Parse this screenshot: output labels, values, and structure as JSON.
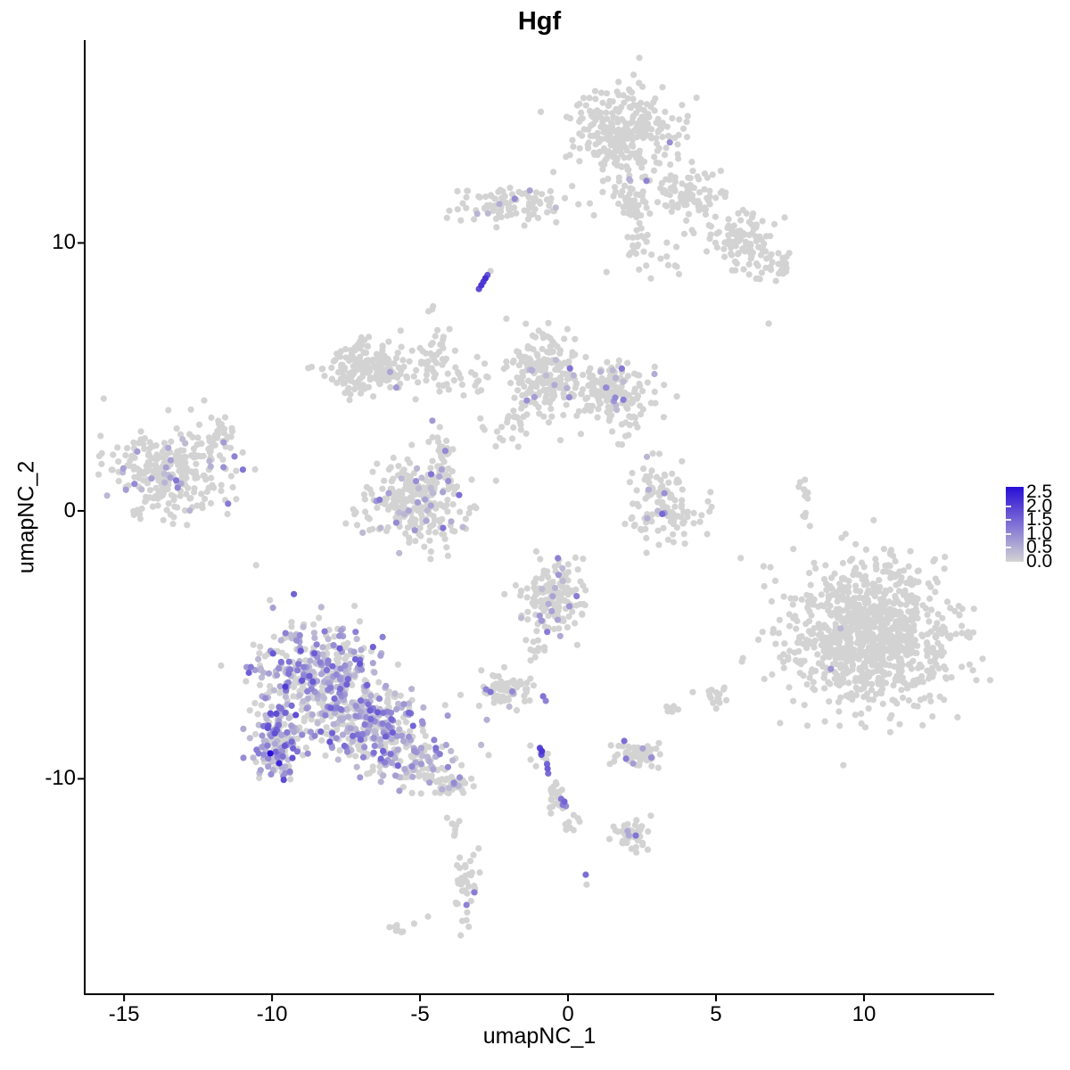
{
  "title": "Hgf",
  "axes": {
    "x": {
      "label": "umapNC_1",
      "ticks": [
        {
          "v": -15,
          "label": "-15"
        },
        {
          "v": -10,
          "label": "-10"
        },
        {
          "v": -5,
          "label": "-5"
        },
        {
          "v": 0,
          "label": "0"
        },
        {
          "v": 5,
          "label": "5"
        },
        {
          "v": 10,
          "label": "10"
        }
      ]
    },
    "y": {
      "label": "umapNC_2",
      "ticks": [
        {
          "v": 10,
          "label": "10"
        },
        {
          "v": 0,
          "label": "0"
        },
        {
          "v": -10,
          "label": "-10"
        }
      ]
    }
  },
  "colors": {
    "background": "#FFFFFF",
    "axis": "#000000",
    "point_low": "#D3D3D3",
    "point_high": "#280ED6"
  },
  "chart_data": {
    "type": "scatter",
    "title": "Hgf",
    "xlabel": "umapNC_1",
    "ylabel": "umapNC_2",
    "xlim": [
      -16.33,
      14.4
    ],
    "ylim": [
      -18.04,
      17.57
    ],
    "x_ticks": [
      -15,
      -10,
      -5,
      0,
      5,
      10
    ],
    "y_ticks": [
      10,
      0,
      -10
    ],
    "grid": false,
    "legend_position": "right",
    "point_radius_px": 3.6,
    "color_low": "#D3D3D3",
    "color_high": "#280ED6",
    "colorbar": {
      "min": 0.0,
      "max": 2.5,
      "labels": [
        "2.5",
        "2.0",
        "1.5",
        "1.0",
        "0.5",
        "0.0"
      ]
    },
    "clusters": [
      {
        "id": "top-main",
        "cx": 1.9,
        "cy": 14.14,
        "sx": 0.95,
        "sy": 0.85,
        "n": 300,
        "frac": 0.004,
        "vmax": 1.0
      },
      {
        "id": "top-main-south",
        "cx": 2.14,
        "cy": 11.55,
        "sx": 0.27,
        "sy": 0.5,
        "n": 50,
        "frac": 0.03,
        "vmax": 1.1
      },
      {
        "id": "top-right-a",
        "cx": 4.16,
        "cy": 11.81,
        "sx": 0.55,
        "sy": 0.5,
        "n": 90,
        "frac": 0.0,
        "vmax": 0
      },
      {
        "id": "top-right-b",
        "cx": 5.81,
        "cy": 10.02,
        "sx": 0.6,
        "sy": 0.55,
        "n": 95,
        "frac": 0.0,
        "vmax": 0
      },
      {
        "id": "top-right-c",
        "cx": 7.08,
        "cy": 9.15,
        "sx": 0.33,
        "sy": 0.28,
        "n": 28,
        "frac": 0.0,
        "vmax": 0
      },
      {
        "id": "top-sparse",
        "cx": 2.65,
        "cy": 9.92,
        "sx": 0.55,
        "sy": 0.6,
        "n": 30,
        "frac": 0.0,
        "vmax": 0
      },
      {
        "id": "top-mid-band",
        "cx": -1.87,
        "cy": 11.41,
        "sx": 1.1,
        "sy": 0.37,
        "n": 100,
        "frac": 0.012,
        "vmax": 1.0
      },
      {
        "id": "left",
        "cx": -13.29,
        "cy": 1.43,
        "sx": 0.95,
        "sy": 0.85,
        "n": 290,
        "frac": 0.085,
        "vmax": 1.2
      },
      {
        "id": "left-ne-streak",
        "cx": -11.66,
        "cy": 2.99,
        "sx": 0.35,
        "sy": 0.4,
        "n": 26,
        "frac": 0.0,
        "vmax": 0
      },
      {
        "id": "arc",
        "cx": -6.69,
        "cy": 5.32,
        "sx": 0.78,
        "sy": 0.5,
        "n": 190,
        "frac": 0.012,
        "vmax": 1.0
      },
      {
        "id": "arc-east-sparse",
        "cx": -3.98,
        "cy": 5.09,
        "sx": 0.7,
        "sy": 0.6,
        "n": 40,
        "frac": 0.0,
        "vmax": 0
      },
      {
        "id": "mid-v-trail",
        "cx": -4.43,
        "cy": 6.26,
        "sx": 0.2,
        "sy": 0.7,
        "n": 22,
        "frac": 0.0,
        "vmax": 0
      },
      {
        "id": "u-cluster",
        "cx": -5.12,
        "cy": 0.37,
        "sx": 0.86,
        "sy": 0.77,
        "n": 270,
        "frac": 0.105,
        "vmax": 1.4
      },
      {
        "id": "u-north-streak",
        "cx": -4.28,
        "cy": 2.16,
        "sx": 0.2,
        "sy": 0.6,
        "n": 26,
        "frac": 0.12,
        "vmax": 1.2
      },
      {
        "id": "between-sparse",
        "cx": -2.17,
        "cy": 3.09,
        "sx": 0.4,
        "sy": 0.35,
        "n": 18,
        "frac": 0.0,
        "vmax": 0
      },
      {
        "id": "center-left",
        "cx": -0.87,
        "cy": 5.09,
        "sx": 0.63,
        "sy": 0.83,
        "n": 200,
        "frac": 0.05,
        "vmax": 1.3
      },
      {
        "id": "center-right",
        "cx": 1.51,
        "cy": 4.36,
        "sx": 0.63,
        "sy": 0.62,
        "n": 170,
        "frac": 0.1,
        "vmax": 1.4
      },
      {
        "id": "crescent",
        "cx": 3.25,
        "cy": 0.23,
        "sx": 0.68,
        "sy": 0.77,
        "n": 120,
        "frac": 0.09,
        "vmax": 1.4
      },
      {
        "id": "right-streak",
        "cx": 7.95,
        "cy": 0.37,
        "sx": 0.1,
        "sy": 0.55,
        "n": 12,
        "frac": 0.0,
        "vmax": 0
      },
      {
        "id": "big-right",
        "cx": 10.33,
        "cy": -4.63,
        "sx": 1.4,
        "sy": 1.35,
        "n": 950,
        "frac": 0.0015,
        "vmax": 0.9
      },
      {
        "id": "bl-core-north",
        "cx": -8.41,
        "cy": -6.12,
        "sx": 1.12,
        "sy": 0.9,
        "n": 400,
        "frac": 0.55,
        "vmax": 1.6
      },
      {
        "id": "bl-core-south",
        "cx": -6.69,
        "cy": -8.05,
        "sx": 0.82,
        "sy": 0.67,
        "n": 270,
        "frac": 0.5,
        "vmax": 1.5
      },
      {
        "id": "bl-west",
        "cx": -9.79,
        "cy": -8.62,
        "sx": 0.42,
        "sy": 0.7,
        "n": 150,
        "frac": 0.6,
        "vmax": 1.8
      },
      {
        "id": "bl-tail",
        "cx": -5.12,
        "cy": -9.28,
        "sx": 0.75,
        "sy": 0.45,
        "n": 120,
        "frac": 0.32,
        "vmax": 1.2
      },
      {
        "id": "bl-tail-end",
        "cx": -3.95,
        "cy": -10.25,
        "sx": 0.3,
        "sy": 0.2,
        "n": 35,
        "frac": 0.12,
        "vmax": 1.0
      },
      {
        "id": "center-bottom",
        "cx": -0.51,
        "cy": -3.29,
        "sx": 0.53,
        "sy": 0.67,
        "n": 165,
        "frac": 0.13,
        "vmax": 1.5
      },
      {
        "id": "cb-south",
        "cx": -1.11,
        "cy": -5.16,
        "sx": 0.2,
        "sy": 0.3,
        "n": 10,
        "frac": 0.0,
        "vmax": 0
      },
      {
        "id": "small-left",
        "cx": -2.17,
        "cy": -6.76,
        "sx": 0.45,
        "sy": 0.37,
        "n": 75,
        "frac": 0.04,
        "vmax": 1.0
      },
      {
        "id": "chain-gray",
        "cx": -0.96,
        "cy": -9.08,
        "sx": 0.18,
        "sy": 0.22,
        "n": 8,
        "frac": 0.0,
        "vmax": 0
      },
      {
        "id": "chain-trail",
        "cx": -0.42,
        "cy": -10.55,
        "sx": 0.13,
        "sy": 0.33,
        "n": 26,
        "frac": 0.0,
        "vmax": 0
      },
      {
        "id": "chain-end",
        "cx": 0.12,
        "cy": -11.61,
        "sx": 0.15,
        "sy": 0.22,
        "n": 10,
        "frac": 0.0,
        "vmax": 0
      },
      {
        "id": "right-mid-low",
        "cx": 2.38,
        "cy": -9.12,
        "sx": 0.44,
        "sy": 0.24,
        "n": 60,
        "frac": 0.04,
        "vmax": 1.2
      },
      {
        "id": "right-bottom",
        "cx": 2.26,
        "cy": -12.15,
        "sx": 0.3,
        "sy": 0.27,
        "n": 50,
        "frac": 0.03,
        "vmax": 1.2
      },
      {
        "id": "bottom-wiggly",
        "cx": -3.46,
        "cy": -13.94,
        "sx": 0.2,
        "sy": 0.75,
        "n": 38,
        "frac": 0.05,
        "vmax": 1.1
      },
      {
        "id": "bottom-streak",
        "cx": -3.86,
        "cy": -11.58,
        "sx": 0.1,
        "sy": 0.25,
        "n": 7,
        "frac": 0.0,
        "vmax": 0
      },
      {
        "id": "bottom-diag",
        "cx": -5.93,
        "cy": -15.57,
        "sx": 0.22,
        "sy": 0.13,
        "n": 8,
        "frac": 0.0,
        "vmax": 0
      },
      {
        "id": "misc-1",
        "cx": 4.91,
        "cy": -7.02,
        "sx": 0.28,
        "sy": 0.2,
        "n": 16,
        "frac": 0.0,
        "vmax": 0
      },
      {
        "id": "misc-2",
        "cx": 3.46,
        "cy": -7.39,
        "sx": 0.15,
        "sy": 0.12,
        "n": 7,
        "frac": 0.0,
        "vmax": 0
      }
    ],
    "extra_points": [
      [
        -3.01,
        8.28,
        1.7
      ],
      [
        -2.93,
        8.42,
        2.0
      ],
      [
        -2.86,
        8.55,
        1.9
      ],
      [
        -2.79,
        8.68,
        2.1
      ],
      [
        -2.72,
        8.8,
        1.6
      ],
      [
        -2.62,
        8.95,
        0
      ],
      [
        2.65,
        12.32,
        1.0
      ],
      [
        -1.8,
        11.65,
        0.9
      ],
      [
        -10.06,
        -9.05,
        2.5
      ],
      [
        -9.76,
        -9.42,
        2.2
      ],
      [
        -9.55,
        -6.56,
        1.9
      ],
      [
        -9.2,
        -7.62,
        1.7
      ],
      [
        -8.05,
        -8.62,
        1.6
      ],
      [
        -0.95,
        -8.85,
        1.8
      ],
      [
        -0.88,
        -8.97,
        2.0
      ],
      [
        -0.9,
        -9.1,
        1.7
      ],
      [
        -0.71,
        -9.45,
        1.4
      ],
      [
        -0.69,
        -9.62,
        1.5
      ],
      [
        -0.67,
        -9.8,
        1.3
      ],
      [
        -0.23,
        -10.75,
        1.2
      ],
      [
        -0.12,
        -10.85,
        1.4
      ],
      [
        -0.18,
        -10.97,
        1.1
      ],
      [
        -0.07,
        -11.02,
        0.9
      ],
      [
        -2.77,
        -6.66,
        1.0
      ],
      [
        -2.62,
        -6.76,
        1.2
      ],
      [
        -0.84,
        -6.92,
        1.2
      ],
      [
        -0.75,
        -7.09,
        1.0
      ],
      [
        1.9,
        -8.59,
        1.3
      ],
      [
        1.96,
        -9.25,
        1.1
      ],
      [
        2.29,
        -12.12,
        1.2
      ],
      [
        0.6,
        -13.58,
        1.3
      ],
      [
        0.63,
        -13.95,
        0
      ],
      [
        -3.16,
        -14.24,
        1.1
      ],
      [
        -3.43,
        -14.71,
        1.0
      ],
      [
        8.88,
        -5.9,
        0.8
      ],
      [
        6.78,
        6.99,
        0
      ],
      [
        -10.54,
        -2.03,
        0
      ],
      [
        -3.82,
        -12.05,
        0
      ],
      [
        -4.73,
        -15.14,
        0
      ]
    ]
  },
  "legend": {
    "labels": [
      "2.5",
      "2.0",
      "1.5",
      "1.0",
      "0.5",
      "0.0"
    ]
  }
}
